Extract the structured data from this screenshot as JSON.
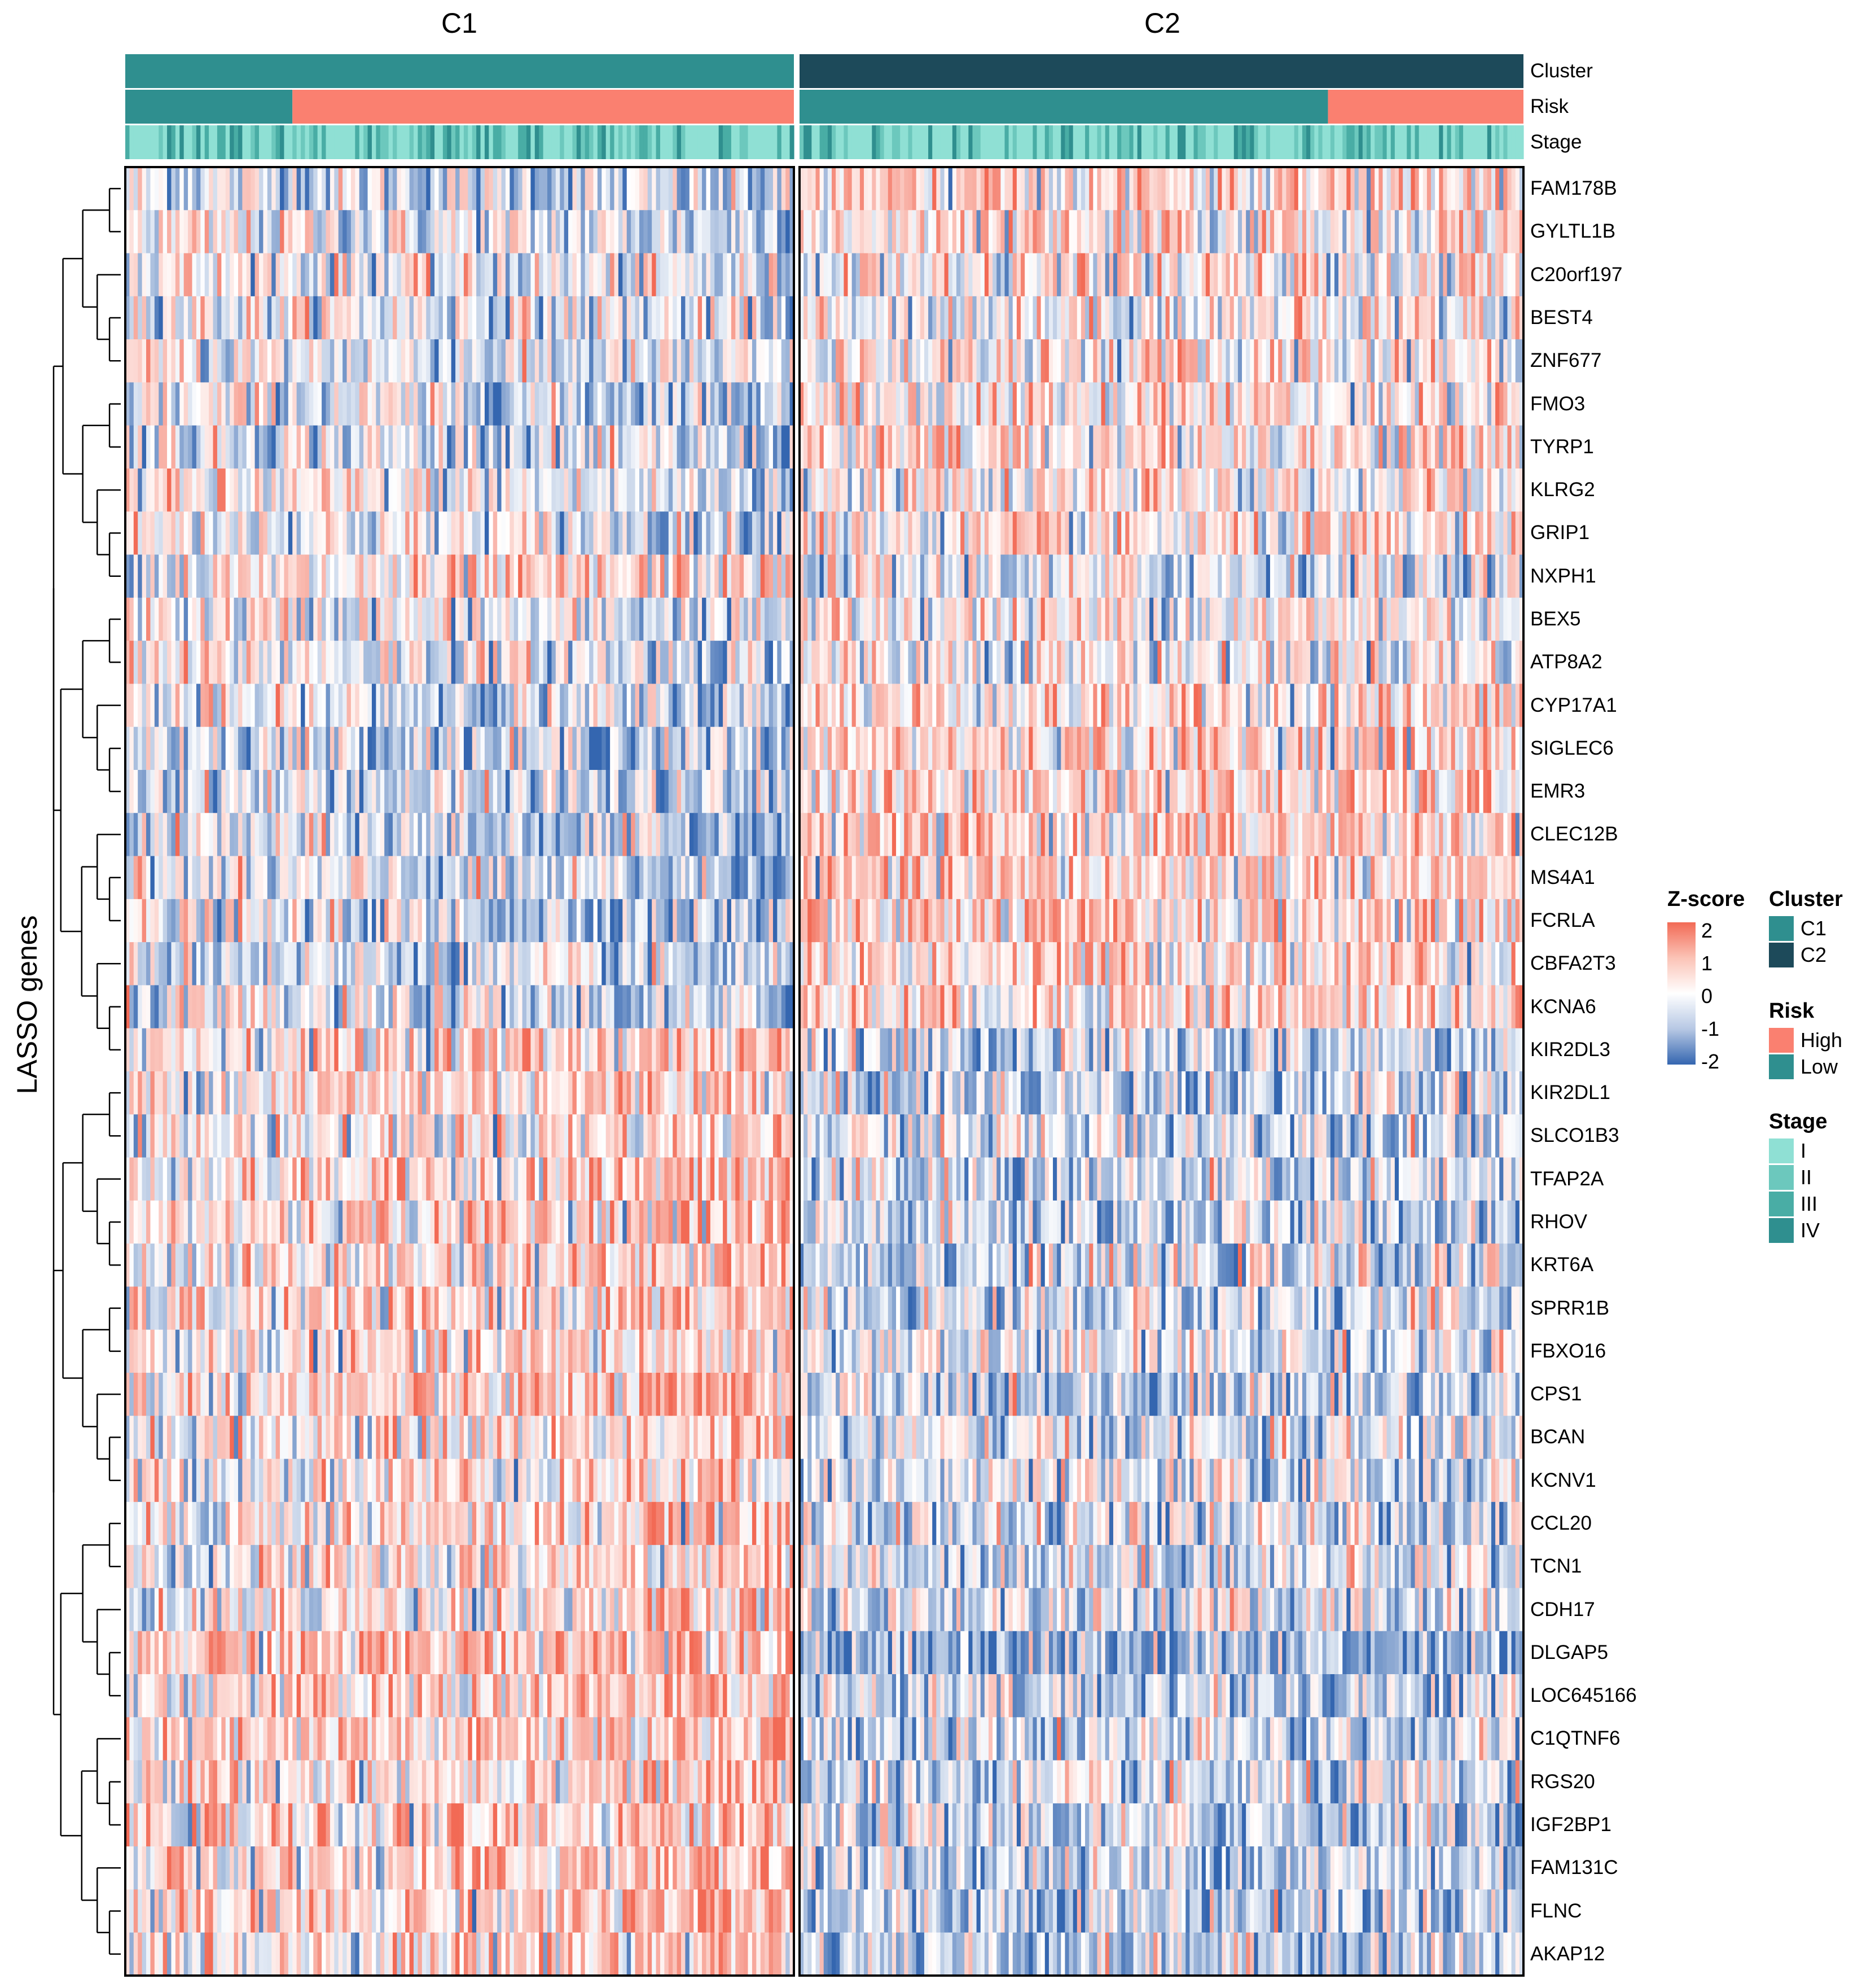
{
  "chart_data": {
    "type": "heatmap",
    "column_splits": [
      "C1",
      "C2"
    ],
    "y_axis_title": "LASSO genes",
    "genes": [
      "FAM178B",
      "GYLTL1B",
      "C20orf197",
      "BEST4",
      "ZNF677",
      "FMO3",
      "TYRP1",
      "KLRG2",
      "GRIP1",
      "NXPH1",
      "BEX5",
      "ATP8A2",
      "CYP17A1",
      "SIGLEC6",
      "EMR3",
      "CLEC12B",
      "MS4A1",
      "FCRLA",
      "CBFA2T3",
      "KCNA6",
      "KIR2DL3",
      "KIR2DL1",
      "SLCO1B3",
      "TFAP2A",
      "RHOV",
      "KRT6A",
      "SPRR1B",
      "FBXO16",
      "CPS1",
      "BCAN",
      "KCNV1",
      "CCL20",
      "TCN1",
      "CDH17",
      "DLGAP5",
      "LOC645166",
      "C1QTNF6",
      "RGS20",
      "IGF2BP1",
      "FAM131C",
      "FLNC",
      "AKAP12"
    ],
    "row_trend_C1_minus_C2": [
      -1,
      -0.5,
      -0.3,
      -0.3,
      -0.6,
      -0.8,
      -0.8,
      -0.3,
      -0.3,
      0.5,
      -0.4,
      -0.2,
      -0.9,
      -1.1,
      -1.1,
      -1.2,
      -1.1,
      -1.1,
      -1.1,
      -1.1,
      1.2,
      1.2,
      0.6,
      1.2,
      1.2,
      0.9,
      0.9,
      0.6,
      1.2,
      0.8,
      0.8,
      0.9,
      0.6,
      0.6,
      2,
      1.2,
      1.2,
      1.2,
      1.2,
      1.2,
      1.2,
      1.2
    ],
    "annotations": {
      "rows": [
        "Cluster",
        "Risk",
        "Stage"
      ],
      "C1": {
        "Cluster": "C1",
        "risk_low_fraction": 0.25
      },
      "C2": {
        "Cluster": "C2",
        "risk_low_fraction": 0.73
      }
    },
    "zscore_legend": {
      "title": "Z-score",
      "ticks": [
        "2",
        "1",
        "0",
        "-1",
        "-2"
      ],
      "range": [
        -2,
        2
      ]
    },
    "legends": [
      {
        "title": "Cluster",
        "items": [
          {
            "label": "C1",
            "color": "#2f8f8f"
          },
          {
            "label": "C2",
            "color": "#1d4a5a"
          }
        ]
      },
      {
        "title": "Risk",
        "items": [
          {
            "label": "High",
            "color": "#fa8070"
          },
          {
            "label": "Low",
            "color": "#2f8f8f"
          }
        ]
      },
      {
        "title": "Stage",
        "items": [
          {
            "label": "I",
            "color": "#8fe0d4"
          },
          {
            "label": "II",
            "color": "#6cc8bd"
          },
          {
            "label": "III",
            "color": "#49ada5"
          },
          {
            "label": "IV",
            "color": "#2f8f8f"
          }
        ]
      }
    ],
    "colors": {
      "high": "#f26a55",
      "mid": "#ffffff",
      "low": "#3466b0"
    }
  }
}
